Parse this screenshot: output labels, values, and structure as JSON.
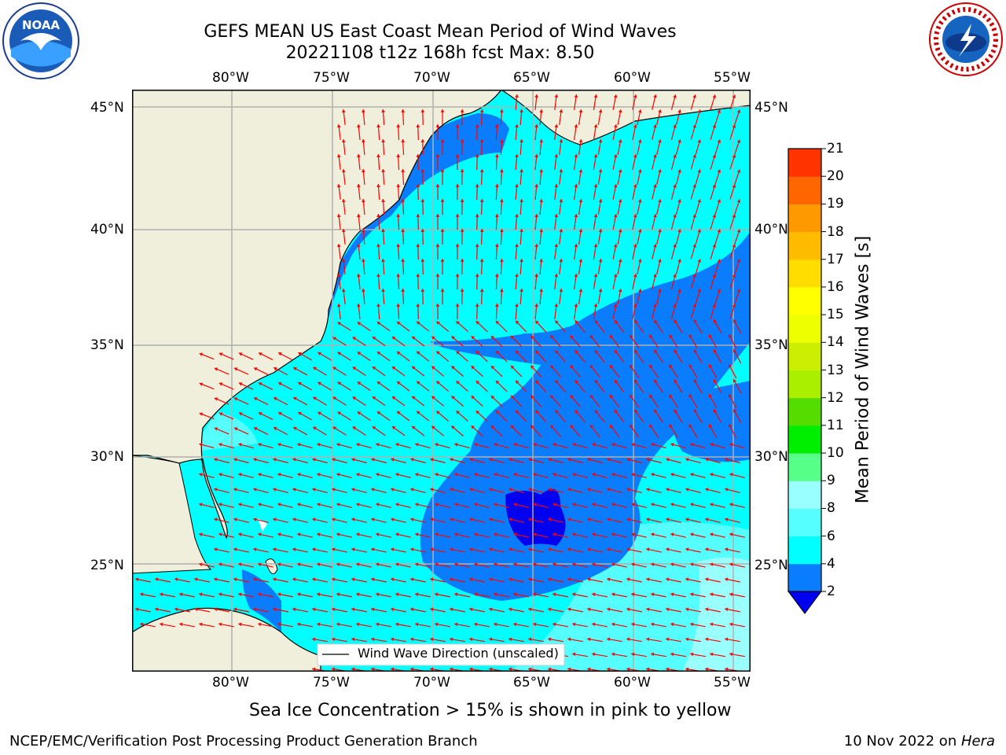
{
  "title": {
    "line1": "GEFS MEAN US East Coast Mean Period of Wind Waves",
    "line2": "20221108 t12z 168h fcst   Max: 8.50"
  },
  "map": {
    "lon_labels": [
      "80°W",
      "75°W",
      "70°W",
      "65°W",
      "60°W",
      "55°W"
    ],
    "lat_labels": [
      "45°N",
      "40°N",
      "35°N",
      "30°N",
      "25°N"
    ],
    "land_color": "#efefdb",
    "ocean_colors": {
      "2-4": "#0a7dff",
      "4-6": "#00ffff",
      "6-8": "#55ffff",
      "8-9": "#99ffff",
      "below-2": "#0000f0"
    },
    "arrow_color": "#ff0000",
    "legend_label": "Wind Wave Direction (unscaled)"
  },
  "colorbar": {
    "label": "Mean Period of Wind Waves [s]",
    "ticks": [
      "2",
      "4",
      "6",
      "8",
      "9",
      "10",
      "11",
      "12",
      "13",
      "14",
      "15",
      "16",
      "17",
      "18",
      "19",
      "20",
      "21"
    ],
    "colors": [
      "#0a7dff",
      "#00ffff",
      "#55ffff",
      "#99ffff",
      "#55ff88",
      "#00ee00",
      "#55dd00",
      "#aaee00",
      "#ccee00",
      "#eeff00",
      "#ffff00",
      "#ffdd00",
      "#ffbb00",
      "#ff9900",
      "#ff6600",
      "#ff3300",
      "#ff0000"
    ],
    "extend_color": "#0000f0"
  },
  "caption": "Sea Ice Concentration > 15% is shown in pink to yellow",
  "footer": {
    "left": "NCEP/EMC/Verification Post Processing Product Generation Branch",
    "right_date": "10 Nov 2022 on ",
    "right_host": "Hera"
  },
  "logos": {
    "noaa_text": "NOAA",
    "nws_text": "NATIONAL WEATHER SERVICE"
  }
}
